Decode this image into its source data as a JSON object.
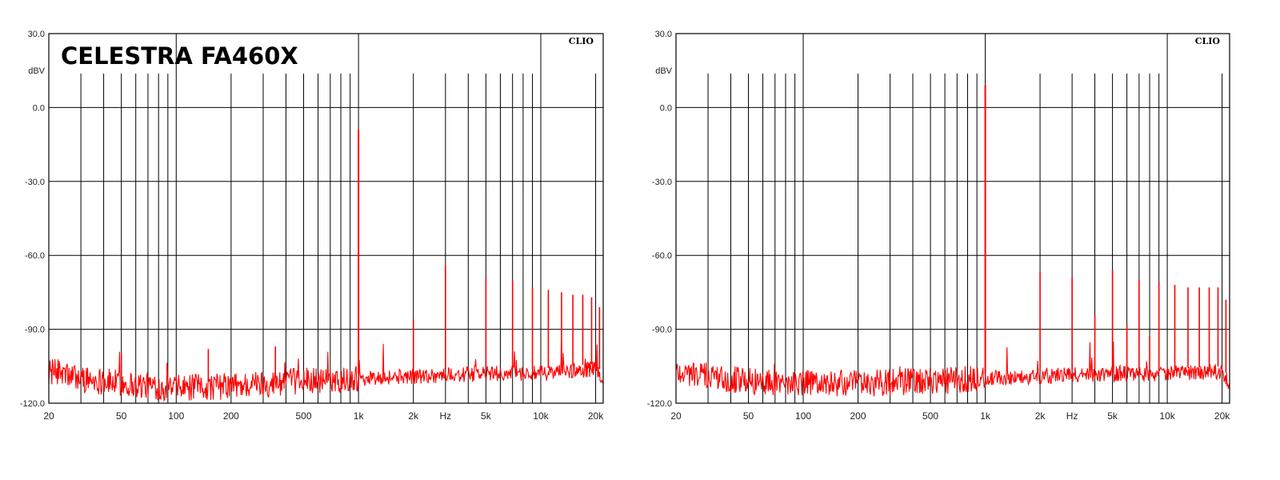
{
  "chart_data": [
    {
      "type": "line",
      "title": "CELESTRA FA460X",
      "brand": "CLIO",
      "ylabel": "dBV",
      "xlabel": "Hz",
      "x_scale": "log",
      "xlim": [
        20,
        22000
      ],
      "ylim": [
        -120,
        30
      ],
      "yticks": [
        30,
        0,
        -30,
        -60,
        -90,
        -120
      ],
      "ytick_labels": [
        "30.0",
        "0.0",
        "-30.0",
        "-60.0",
        "-90.0",
        "-120.0"
      ],
      "xticks": [
        20,
        50,
        100,
        200,
        500,
        1000,
        2000,
        5000,
        10000,
        20000
      ],
      "xtick_labels": [
        "20",
        "50",
        "100",
        "200",
        "500",
        "1k",
        "2k",
        "5k",
        "10k",
        "20k"
      ],
      "grid": true,
      "series_color": "#ff0000",
      "noise_floor": [
        [
          20,
          -107
        ],
        [
          30,
          -110
        ],
        [
          50,
          -112
        ],
        [
          100,
          -114
        ],
        [
          200,
          -113
        ],
        [
          500,
          -111
        ],
        [
          1000,
          -110
        ],
        [
          2000,
          -109
        ],
        [
          5000,
          -108
        ],
        [
          10000,
          -108
        ],
        [
          20000,
          -106
        ],
        [
          22000,
          -110
        ]
      ],
      "peaks": [
        {
          "x": 50,
          "y": -100
        },
        {
          "x": 150,
          "y": -98
        },
        {
          "x": 350,
          "y": -97
        },
        {
          "x": 1000,
          "y": -9
        },
        {
          "x": 2000,
          "y": -86
        },
        {
          "x": 3000,
          "y": -64
        },
        {
          "x": 5000,
          "y": -69
        },
        {
          "x": 7000,
          "y": -70
        },
        {
          "x": 9000,
          "y": -73
        },
        {
          "x": 11000,
          "y": -74
        },
        {
          "x": 13000,
          "y": -75
        },
        {
          "x": 15000,
          "y": -76
        },
        {
          "x": 17000,
          "y": -76
        },
        {
          "x": 19000,
          "y": -77
        },
        {
          "x": 21000,
          "y": -81
        }
      ]
    },
    {
      "type": "line",
      "title": "",
      "brand": "CLIO",
      "ylabel": "dBV",
      "xlabel": "Hz",
      "x_scale": "log",
      "xlim": [
        20,
        22000
      ],
      "ylim": [
        -120,
        30
      ],
      "yticks": [
        30,
        0,
        -30,
        -60,
        -90,
        -120
      ],
      "ytick_labels": [
        "30.0",
        "0.0",
        "-30.0",
        "-60.0",
        "-90.0",
        "-120.0"
      ],
      "xticks": [
        20,
        50,
        100,
        200,
        500,
        1000,
        2000,
        5000,
        10000,
        20000
      ],
      "xtick_labels": [
        "20",
        "50",
        "100",
        "200",
        "500",
        "1k",
        "2k",
        "5k",
        "10k",
        "20k"
      ],
      "grid": true,
      "series_color": "#ff0000",
      "noise_floor": [
        [
          20,
          -107
        ],
        [
          30,
          -109
        ],
        [
          50,
          -111
        ],
        [
          100,
          -112
        ],
        [
          200,
          -112
        ],
        [
          500,
          -111
        ],
        [
          1000,
          -110
        ],
        [
          2000,
          -109
        ],
        [
          5000,
          -108
        ],
        [
          10000,
          -108
        ],
        [
          20000,
          -107
        ],
        [
          22000,
          -112
        ]
      ],
      "peaks": [
        {
          "x": 1000,
          "y": 9
        },
        {
          "x": 2000,
          "y": -67
        },
        {
          "x": 3000,
          "y": -69
        },
        {
          "x": 4000,
          "y": -84
        },
        {
          "x": 5000,
          "y": -66
        },
        {
          "x": 6000,
          "y": -88
        },
        {
          "x": 7000,
          "y": -70
        },
        {
          "x": 8000,
          "y": -93
        },
        {
          "x": 9000,
          "y": -71
        },
        {
          "x": 11000,
          "y": -72
        },
        {
          "x": 13000,
          "y": -73
        },
        {
          "x": 15000,
          "y": -73
        },
        {
          "x": 17000,
          "y": -73
        },
        {
          "x": 19000,
          "y": -73
        },
        {
          "x": 21000,
          "y": -78
        }
      ]
    }
  ]
}
